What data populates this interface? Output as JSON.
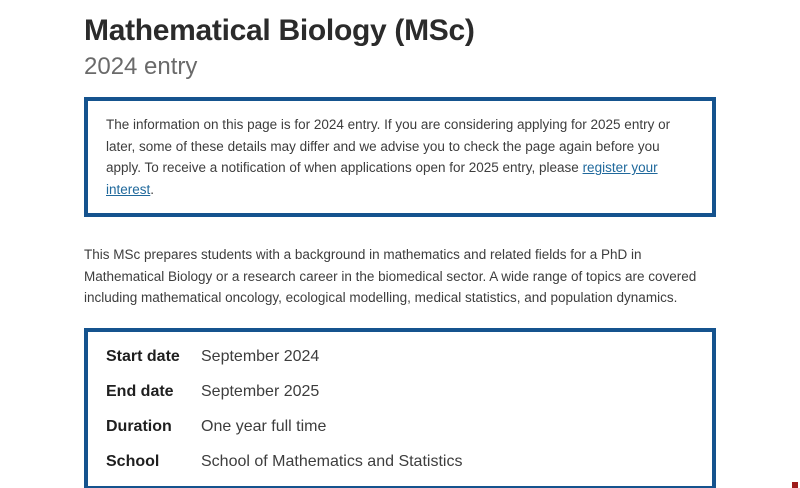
{
  "page": {
    "title": "Mathematical Biology (MSc)",
    "subtitle": "2024 entry"
  },
  "notice": {
    "text_before_link": "The information on this page is for 2024 entry. If you are considering applying for 2025 entry or later, some of these details may differ and we advise you to check the page again before you apply. To receive a notification of when applications open for 2025 entry, please ",
    "link_label": "register your interest",
    "text_after_link": "."
  },
  "intro_paragraph": "This MSc prepares students with a background in mathematics and related fields for a PhD in Mathematical Biology or a research career in the biomedical sector. A wide range of topics are covered including mathematical oncology, ecological modelling, medical statistics, and population dynamics.",
  "course_facts": {
    "rows": [
      {
        "label": "Start date",
        "value": "September 2024"
      },
      {
        "label": "End date",
        "value": "September 2025"
      },
      {
        "label": "Duration",
        "value": "One year full time"
      },
      {
        "label": "School",
        "value": "School of Mathematics and Statistics"
      }
    ]
  },
  "colors": {
    "accent_border": "#15538e",
    "link": "#20699c",
    "title_text": "#2b2b2b",
    "subtitle_text": "#6a6a6a",
    "body_text": "#3d3d3d"
  }
}
